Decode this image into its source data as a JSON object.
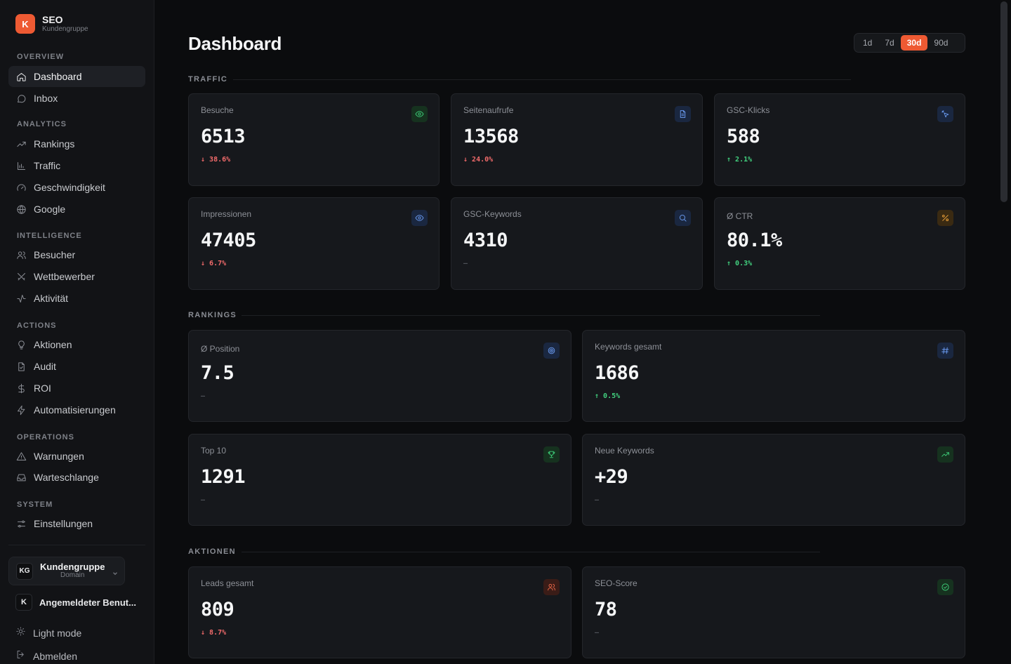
{
  "brand": {
    "logo": "K",
    "title": "SEO",
    "subtitle": "Kundengruppe"
  },
  "sidebar": {
    "sections": [
      {
        "label": "OVERVIEW",
        "items": [
          {
            "label": "Dashboard",
            "icon": "home-icon",
            "active": true
          },
          {
            "label": "Inbox",
            "icon": "message-icon"
          }
        ]
      },
      {
        "label": "ANALYTICS",
        "items": [
          {
            "label": "Rankings",
            "icon": "trending-icon"
          },
          {
            "label": "Traffic",
            "icon": "bar-chart-icon"
          },
          {
            "label": "Geschwindigkeit",
            "icon": "gauge-icon"
          },
          {
            "label": "Google",
            "icon": "globe-icon"
          }
        ]
      },
      {
        "label": "INTELLIGENCE",
        "items": [
          {
            "label": "Besucher",
            "icon": "users-icon"
          },
          {
            "label": "Wettbewerber",
            "icon": "swords-icon"
          },
          {
            "label": "Aktivität",
            "icon": "activity-icon"
          }
        ]
      },
      {
        "label": "ACTIONS",
        "items": [
          {
            "label": "Aktionen",
            "icon": "lightbulb-icon"
          },
          {
            "label": "Audit",
            "icon": "file-check-icon"
          },
          {
            "label": "ROI",
            "icon": "dollar-icon"
          },
          {
            "label": "Automatisierungen",
            "icon": "zap-icon"
          }
        ]
      },
      {
        "label": "OPERATIONS",
        "items": [
          {
            "label": "Warnungen",
            "icon": "warning-icon"
          },
          {
            "label": "Warteschlange",
            "icon": "inbox-icon"
          }
        ]
      },
      {
        "label": "SYSTEM",
        "items": [
          {
            "label": "Einstellungen",
            "icon": "sliders-icon"
          }
        ]
      }
    ],
    "workspace": {
      "badge": "KG",
      "name": "Kundengruppe",
      "sub": "Domain"
    },
    "user": {
      "badge": "K",
      "name": "Angemeldeter Benut..."
    },
    "theme_toggle": "Light mode",
    "logout": "Abmelden"
  },
  "main": {
    "title": "Dashboard",
    "ranges": [
      {
        "label": "1d"
      },
      {
        "label": "7d"
      },
      {
        "label": "30d",
        "active": true
      },
      {
        "label": "90d"
      }
    ],
    "groups": {
      "traffic": "TRAFFIC",
      "rankings": "RANKINGS",
      "aktionen": "AKTIONEN"
    },
    "cards": {
      "besuche": {
        "label": "Besuche",
        "value": "6513",
        "delta": "38.6%",
        "trend": "down",
        "icon": "eye-icon",
        "tone": "green"
      },
      "seitenaufrufe": {
        "label": "Seitenaufrufe",
        "value": "13568",
        "delta": "24.0%",
        "trend": "down",
        "icon": "document-icon",
        "tone": "blue"
      },
      "gsc_klicks": {
        "label": "GSC-Klicks",
        "value": "588",
        "delta": "2.1%",
        "trend": "up",
        "icon": "cursor-click-icon",
        "tone": "blue"
      },
      "impressionen": {
        "label": "Impressionen",
        "value": "47405",
        "delta": "6.7%",
        "trend": "down",
        "icon": "eye-icon",
        "tone": "blue"
      },
      "gsc_keywords": {
        "label": "GSC-Keywords",
        "value": "4310",
        "delta": "–",
        "trend": "none",
        "icon": "search-icon",
        "tone": "blue"
      },
      "ctr": {
        "label": "Ø CTR",
        "value": "80.1%",
        "delta": "0.3%",
        "trend": "up",
        "icon": "percent-icon",
        "tone": "amber"
      },
      "position": {
        "label": "Ø Position",
        "value": "7.5",
        "delta": "–",
        "trend": "none",
        "icon": "target-icon",
        "tone": "blue"
      },
      "keywords_gesamt": {
        "label": "Keywords gesamt",
        "value": "1686",
        "delta": "0.5%",
        "trend": "up",
        "icon": "hash-icon",
        "tone": "blue"
      },
      "top10": {
        "label": "Top 10",
        "value": "1291",
        "delta": "–",
        "trend": "none",
        "icon": "trophy-icon",
        "tone": "green"
      },
      "neue_keywords": {
        "label": "Neue Keywords",
        "value": "+29",
        "delta": "–",
        "trend": "none",
        "icon": "trending-up-icon",
        "tone": "green"
      },
      "leads": {
        "label": "Leads gesamt",
        "value": "809",
        "delta": "8.7%",
        "trend": "down",
        "icon": "users-icon",
        "tone": "red"
      },
      "seo_score": {
        "label": "SEO-Score",
        "value": "78",
        "delta": "–",
        "trend": "none",
        "icon": "check-circle-icon",
        "tone": "green"
      }
    }
  }
}
